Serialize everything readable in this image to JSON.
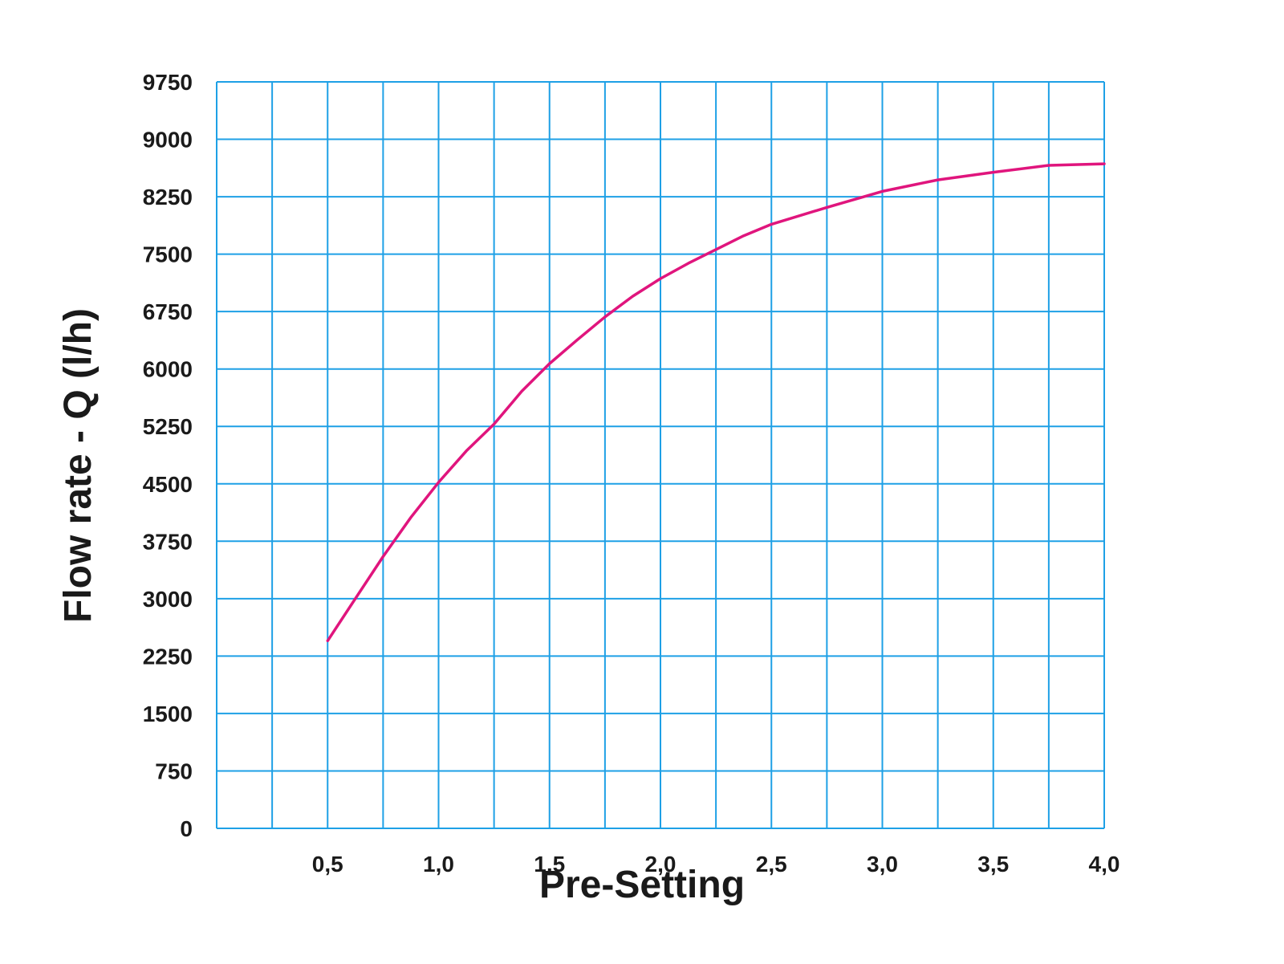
{
  "chart_data": {
    "type": "line",
    "title": "",
    "xlabel": "Pre-Setting",
    "ylabel": "Flow rate - Q (l/h)",
    "xlim": [
      0,
      4.0
    ],
    "ylim": [
      0,
      9750
    ],
    "grid": true,
    "x_tick_values": [
      0.5,
      1.0,
      1.5,
      2.0,
      2.5,
      3.0,
      3.5,
      4.0
    ],
    "x_tick_labels": [
      "0,5",
      "1,0",
      "1,5",
      "2,0",
      "2,5",
      "3,0",
      "3,5",
      "4,0"
    ],
    "y_ticks": [
      0,
      750,
      1500,
      2250,
      3000,
      3750,
      4500,
      5250,
      6000,
      6750,
      7500,
      8250,
      9000,
      9750
    ],
    "y_tick_labels": [
      "0",
      "750",
      "1500",
      "2250",
      "3000",
      "3750",
      "4500",
      "5250",
      "6000",
      "6750",
      "7500",
      "8250",
      "9000",
      "9750"
    ],
    "x_grid_step": 0.25,
    "series": [
      {
        "color": "#e0157d",
        "x": [
          0.5,
          0.625,
          0.75,
          0.875,
          1.0,
          1.125,
          1.25,
          1.375,
          1.5,
          1.625,
          1.75,
          1.875,
          2.0,
          2.125,
          2.25,
          2.375,
          2.5,
          2.75,
          3.0,
          3.25,
          3.5,
          3.75,
          4.0
        ],
        "y": [
          2450,
          3000,
          3550,
          4060,
          4520,
          4930,
          5280,
          5710,
          6070,
          6380,
          6680,
          6950,
          7180,
          7380,
          7560,
          7740,
          7890,
          8110,
          8320,
          8470,
          8570,
          8660,
          8680
        ]
      }
    ]
  },
  "colors": {
    "grid": "#1ea0e6",
    "line": "#e0157d",
    "text": "#1a1a1a"
  }
}
